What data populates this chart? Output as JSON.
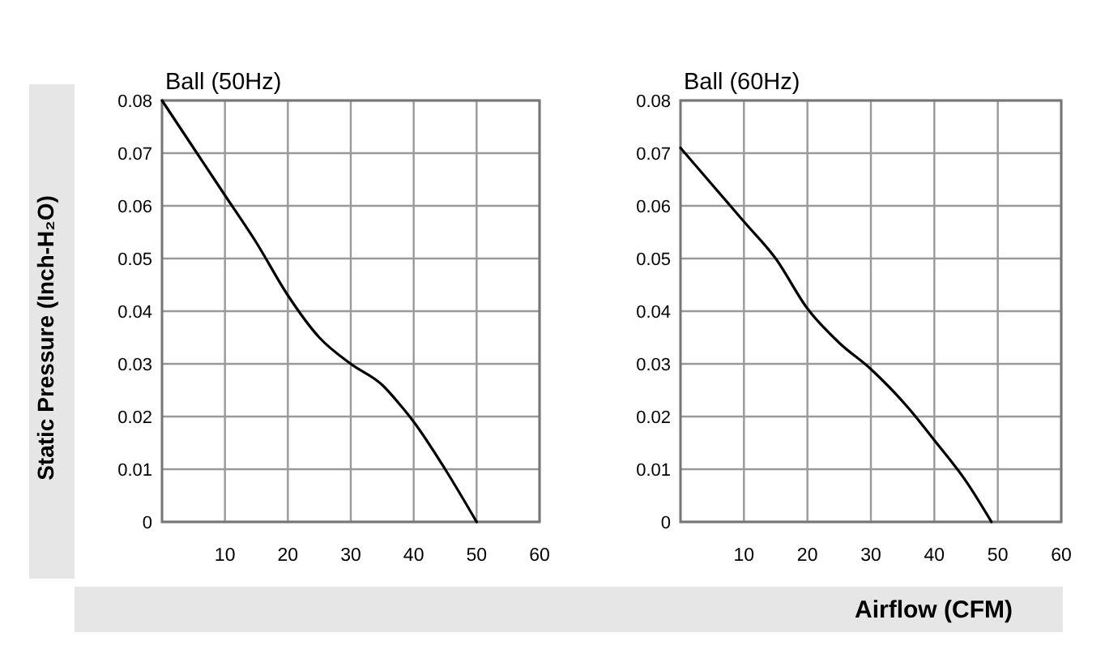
{
  "chart_data": [
    {
      "type": "line",
      "title": "Ball (50Hz)",
      "ylabel": "Static Pressure (Inch-H₂O)",
      "xlim": [
        0,
        60
      ],
      "xticks": [
        10,
        20,
        30,
        40,
        50,
        60
      ],
      "ylim": [
        0,
        0.08
      ],
      "yticks": [
        0,
        0.01,
        0.02,
        0.03,
        0.04,
        0.05,
        0.06,
        0.07,
        0.08
      ],
      "grid": true,
      "series": [
        {
          "color": "#000000",
          "x": [
            0,
            5,
            10,
            15,
            20,
            25,
            30,
            35,
            38,
            40,
            45,
            50
          ],
          "values": [
            0.08,
            0.071,
            0.062,
            0.053,
            0.043,
            0.035,
            0.03,
            0.026,
            0.022,
            0.019,
            0.01,
            0
          ]
        }
      ]
    },
    {
      "type": "line",
      "title": "Ball (60Hz)",
      "xlabel": "Airflow (CFM)",
      "xlim": [
        0,
        60
      ],
      "xticks": [
        10,
        20,
        30,
        40,
        50,
        60
      ],
      "ylim": [
        0,
        0.08
      ],
      "yticks": [
        0,
        0.01,
        0.02,
        0.03,
        0.04,
        0.05,
        0.06,
        0.07,
        0.08
      ],
      "grid": true,
      "series": [
        {
          "color": "#000000",
          "x": [
            0,
            5,
            10,
            15,
            20,
            25,
            30,
            36,
            40,
            45,
            49
          ],
          "values": [
            0.071,
            0.064,
            0.057,
            0.05,
            0.0405,
            0.034,
            0.029,
            0.0215,
            0.0155,
            0.0077,
            0
          ]
        }
      ]
    }
  ]
}
